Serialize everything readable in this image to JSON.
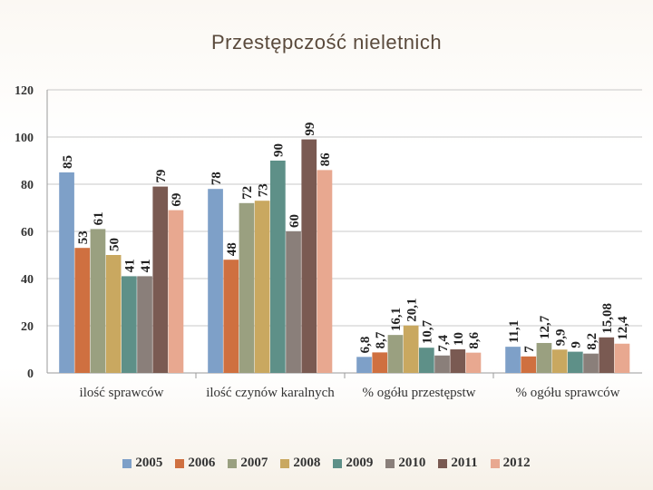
{
  "title": "Przestępczość nieletnich",
  "chart_data": {
    "type": "bar",
    "title": "Przestępczość nieletnich",
    "categories": [
      "ilość sprawców",
      "ilość czynów karalnych",
      "% ogółu przestępstw",
      "% ogółu sprawców"
    ],
    "ylim": [
      0,
      120
    ],
    "yticks": [
      0,
      20,
      40,
      60,
      80,
      100,
      120
    ],
    "grid": true,
    "legend_position": "bottom",
    "series": [
      {
        "name": "2005",
        "color": "#7ea0c8",
        "values": [
          85,
          78,
          6.8,
          11.1
        ],
        "labels": [
          "85",
          "78",
          "6,8",
          "11,1"
        ]
      },
      {
        "name": "2006",
        "color": "#cf7040",
        "values": [
          53,
          48,
          8.7,
          7
        ],
        "labels": [
          "53",
          "48",
          "8,7",
          "7"
        ]
      },
      {
        "name": "2007",
        "color": "#9aa080",
        "values": [
          61,
          72,
          16.1,
          12.7
        ],
        "labels": [
          "61",
          "72",
          "16,1",
          "12,7"
        ]
      },
      {
        "name": "2008",
        "color": "#c9a860",
        "values": [
          50,
          73,
          20.1,
          9.9
        ],
        "labels": [
          "50",
          "73",
          "20,1",
          "9,9"
        ]
      },
      {
        "name": "2009",
        "color": "#5e9088",
        "values": [
          41,
          90,
          10.7,
          9
        ],
        "labels": [
          "41",
          "90",
          "10,7",
          "9"
        ]
      },
      {
        "name": "2010",
        "color": "#8a7f7a",
        "values": [
          41,
          60,
          7.4,
          8.2
        ],
        "labels": [
          "41",
          "60",
          "7,4",
          "8,2"
        ]
      },
      {
        "name": "2011",
        "color": "#7a5a52",
        "values": [
          79,
          99,
          10,
          15.08
        ],
        "labels": [
          "79",
          "99",
          "10",
          "15,08"
        ]
      },
      {
        "name": "2012",
        "color": "#e8a890",
        "values": [
          69,
          86,
          8.6,
          12.4
        ],
        "labels": [
          "69",
          "86",
          "8,6",
          "12,4"
        ]
      }
    ]
  }
}
